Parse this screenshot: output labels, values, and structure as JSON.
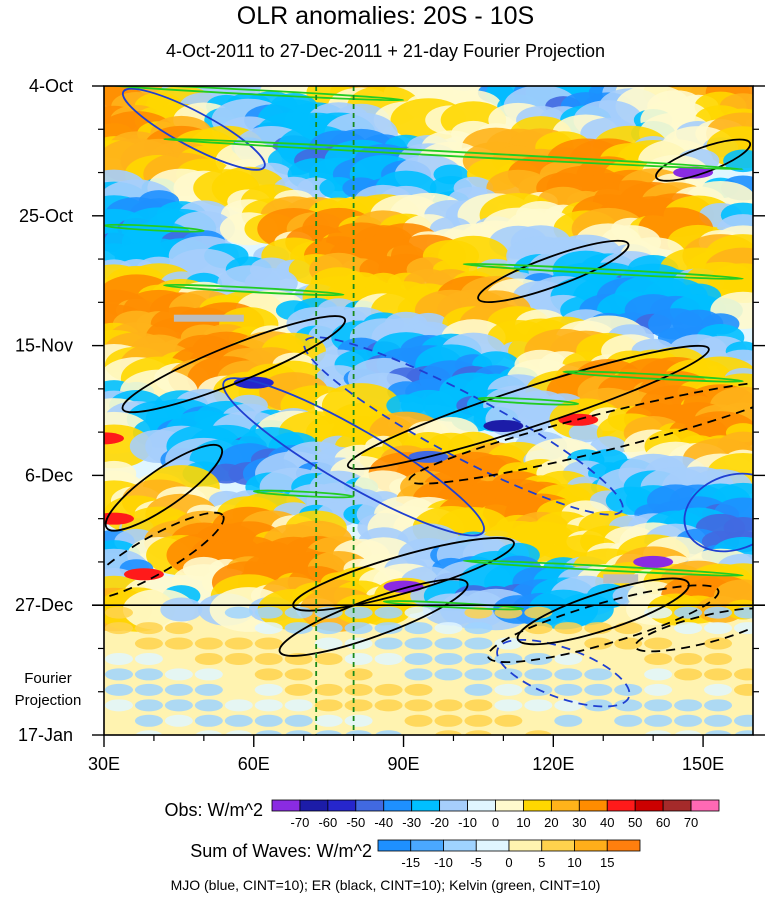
{
  "chart_data": {
    "type": "heatmap",
    "title": "OLR anomalies: 20S - 10S",
    "subtitle": "4-Oct-2011 to 27-Dec-2011 + 21-day Fourier Projection",
    "x_range": [
      30,
      160
    ],
    "x_ticks": [
      {
        "value": 30,
        "label": "30E"
      },
      {
        "value": 60,
        "label": "60E"
      },
      {
        "value": 90,
        "label": "90E"
      },
      {
        "value": 120,
        "label": "120E"
      },
      {
        "value": 150,
        "label": "150E"
      }
    ],
    "y_range_days": [
      0,
      105
    ],
    "y_ticks": [
      {
        "day": 0,
        "label": "4-Oct"
      },
      {
        "day": 21,
        "label": "25-Oct"
      },
      {
        "day": 42,
        "label": "15-Nov"
      },
      {
        "day": 63,
        "label": "6-Dec"
      },
      {
        "day": 84,
        "label": "27-Dec"
      },
      {
        "day": 105,
        "label": "17-Jan"
      }
    ],
    "projection_start_day": 84,
    "projection_label": "Fourier Projection",
    "reference_lines_lon": [
      72.5,
      80
    ],
    "obs_colorbar": {
      "label": "Obs: W/m^2",
      "levels": [
        "-70",
        "-60",
        "-50",
        "-40",
        "-30",
        "-20",
        "-10",
        "0",
        "10",
        "20",
        "30",
        "40",
        "50",
        "60",
        "70"
      ],
      "colors": [
        "#8a2be2",
        "#1c1ca8",
        "#2626cc",
        "#4169e1",
        "#1e90ff",
        "#00bfff",
        "#a6cefc",
        "#e0f6ff",
        "#fffacd",
        "#ffd700",
        "#ffb31a",
        "#ff8c00",
        "#ff1a1a",
        "#cc0000",
        "#a52a2a",
        "#ff69b4"
      ]
    },
    "waves_colorbar": {
      "label": "Sum of Waves: W/m^2",
      "levels": [
        "-15",
        "-10",
        "-5",
        "0",
        "5",
        "10",
        "15"
      ],
      "colors": [
        "#1e90ff",
        "#4aa8ff",
        "#9fd3ff",
        "#e0f6ff",
        "#fff3b0",
        "#ffd24d",
        "#ffae1a",
        "#ff7f0e"
      ]
    },
    "contour_note": "MJO (blue, CINT=10); ER (black, CINT=10); Kelvin (green, CINT=10)"
  }
}
